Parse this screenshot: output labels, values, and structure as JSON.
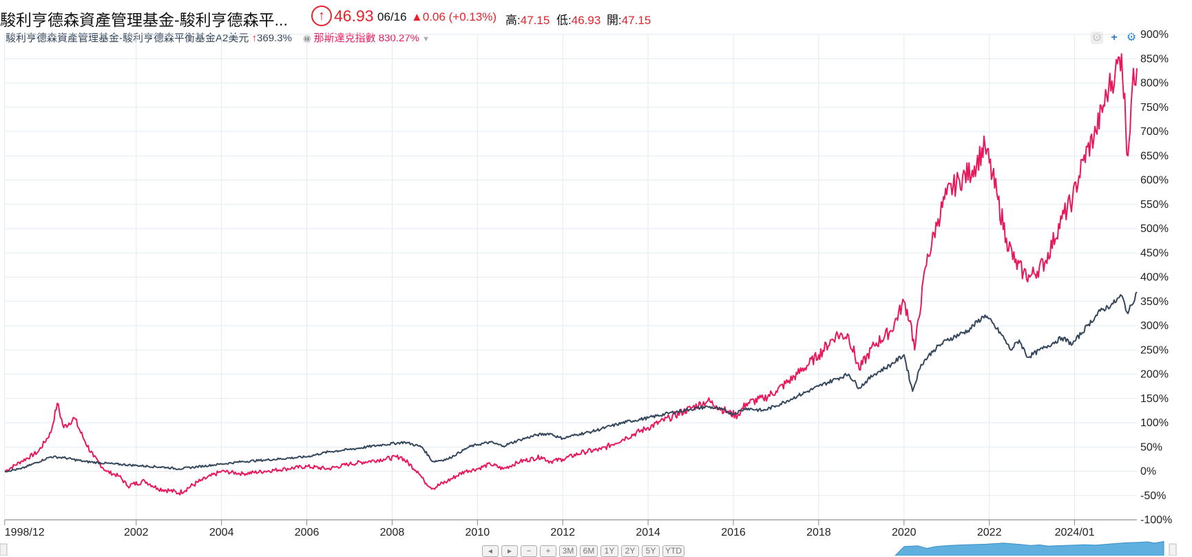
{
  "header": {
    "title": "駿利亨德森資產管理基金-駿利亨德森平...",
    "price": "46.93",
    "date": "06/16",
    "change": "▲0.06 (+0.13%)",
    "high_label": "高:",
    "high_value": "47.15",
    "low_label": "低:",
    "low_value": "46.93",
    "open_label": "開:",
    "open_value": "47.15"
  },
  "legend": {
    "series1_name": "駿利亨德森資產管理基金-駿利亨德森平衡基金A2美元",
    "series1_pct": "369.3%",
    "series2_name": "那斯達克指數",
    "series2_pct": "830.27%"
  },
  "icons": [
    "up-arrow-icon",
    "eye-icon",
    "caret-down-icon",
    "reset-icon",
    "plus-icon",
    "gear-icon"
  ],
  "navigator": {
    "buttons": [
      "◂",
      "▸",
      "−",
      "+",
      "3M",
      "6M",
      "1Y",
      "2Y",
      "5Y",
      "YTD"
    ]
  },
  "colors": {
    "fund": "#34465c",
    "nasdaq": "#e8185b",
    "up": "#e8212a",
    "grid": "#e3eaf0",
    "tools": "#2a7fd0"
  },
  "chart_data": {
    "type": "line",
    "x_ticks": [
      "1998/12",
      "2002",
      "2004",
      "2006",
      "2008",
      "2010",
      "2012",
      "2014",
      "2016",
      "2018",
      "2020",
      "2022",
      "2024/01"
    ],
    "y_ticks": [
      "900%",
      "850%",
      "800%",
      "750%",
      "700%",
      "650%",
      "600%",
      "550%",
      "500%",
      "450%",
      "400%",
      "350%",
      "300%",
      "250%",
      "200%",
      "150%",
      "100%",
      "50%",
      "0%",
      "-50%",
      "-100%"
    ],
    "ylim": [
      -100,
      900
    ],
    "xlim": [
      1998.92,
      2025.46
    ],
    "grid": true,
    "series": [
      {
        "name": "駿利亨德森資產管理基金-駿利亨德森平衡基金A2美元",
        "x": [
          1998.92,
          1999.3,
          2000.0,
          2000.3,
          2000.8,
          2001.5,
          2002.0,
          2002.7,
          2003.0,
          2004.0,
          2004.5,
          2005.0,
          2006.0,
          2006.5,
          2007.0,
          2007.8,
          2008.3,
          2008.7,
          2008.95,
          2009.3,
          2009.8,
          2010.0,
          2010.3,
          2010.6,
          2011.0,
          2011.4,
          2011.7,
          2011.9,
          2012.0,
          2012.4,
          2012.7,
          2013.0,
          2013.5,
          2014.0,
          2014.5,
          2015.0,
          2015.4,
          2015.7,
          2016.0,
          2016.3,
          2016.7,
          2017.0,
          2017.5,
          2018.0,
          2018.4,
          2018.7,
          2018.95,
          2019.3,
          2019.7,
          2020.0,
          2020.2,
          2020.4,
          2020.7,
          2021.0,
          2021.5,
          2021.9,
          2022.3,
          2022.5,
          2022.7,
          2022.9,
          2023.3,
          2023.7,
          2023.95,
          2024.3,
          2024.6,
          2024.9,
          2025.1,
          2025.25,
          2025.46
        ],
        "values": [
          0,
          5,
          30,
          28,
          20,
          15,
          12,
          8,
          5,
          15,
          20,
          23,
          30,
          40,
          45,
          55,
          60,
          50,
          20,
          25,
          50,
          55,
          60,
          52,
          65,
          75,
          78,
          70,
          68,
          77,
          82,
          90,
          102,
          110,
          120,
          128,
          133,
          128,
          118,
          130,
          125,
          135,
          155,
          175,
          190,
          200,
          172,
          200,
          220,
          240,
          165,
          220,
          250,
          270,
          290,
          322,
          280,
          250,
          270,
          235,
          255,
          275,
          262,
          300,
          330,
          345,
          362,
          325,
          369.3
        ]
      },
      {
        "name": "那斯達克指數",
        "x": [
          1998.92,
          1999.3,
          1999.7,
          2000.0,
          2000.15,
          2000.3,
          2000.55,
          2000.75,
          2001.0,
          2001.3,
          2001.6,
          2001.8,
          2002.2,
          2002.5,
          2002.8,
          2003.0,
          2003.5,
          2004.0,
          2004.5,
          2005.0,
          2005.5,
          2006.0,
          2006.5,
          2007.0,
          2007.8,
          2008.2,
          2008.6,
          2008.75,
          2008.95,
          2009.3,
          2009.7,
          2010.0,
          2010.3,
          2010.6,
          2011.0,
          2011.5,
          2011.7,
          2012.0,
          2012.5,
          2012.9,
          2013.5,
          2014.0,
          2014.5,
          2015.0,
          2015.4,
          2015.6,
          2015.9,
          2016.1,
          2016.3,
          2016.7,
          2017.0,
          2017.5,
          2018.0,
          2018.4,
          2018.7,
          2018.95,
          2019.3,
          2019.7,
          2020.0,
          2020.15,
          2020.25,
          2020.5,
          2020.8,
          2021.0,
          2021.3,
          2021.6,
          2021.9,
          2022.2,
          2022.4,
          2022.6,
          2022.8,
          2022.95,
          2023.3,
          2023.7,
          2023.95,
          2024.2,
          2024.5,
          2024.8,
          2024.95,
          2025.1,
          2025.25,
          2025.35,
          2025.46
        ],
        "values": [
          0,
          20,
          40,
          80,
          140,
          90,
          110,
          70,
          30,
          0,
          -10,
          -30,
          -20,
          -35,
          -40,
          -45,
          -20,
          0,
          -5,
          0,
          5,
          10,
          5,
          15,
          25,
          30,
          0,
          -20,
          -35,
          -20,
          0,
          5,
          15,
          5,
          20,
          30,
          20,
          25,
          40,
          45,
          70,
          90,
          110,
          130,
          145,
          135,
          120,
          115,
          140,
          150,
          165,
          200,
          240,
          280,
          280,
          210,
          260,
          290,
          350,
          310,
          250,
          420,
          520,
          570,
          600,
          620,
          670,
          560,
          480,
          430,
          410,
          400,
          430,
          520,
          560,
          640,
          700,
          790,
          820,
          860,
          650,
          790,
          830.27
        ]
      }
    ]
  }
}
